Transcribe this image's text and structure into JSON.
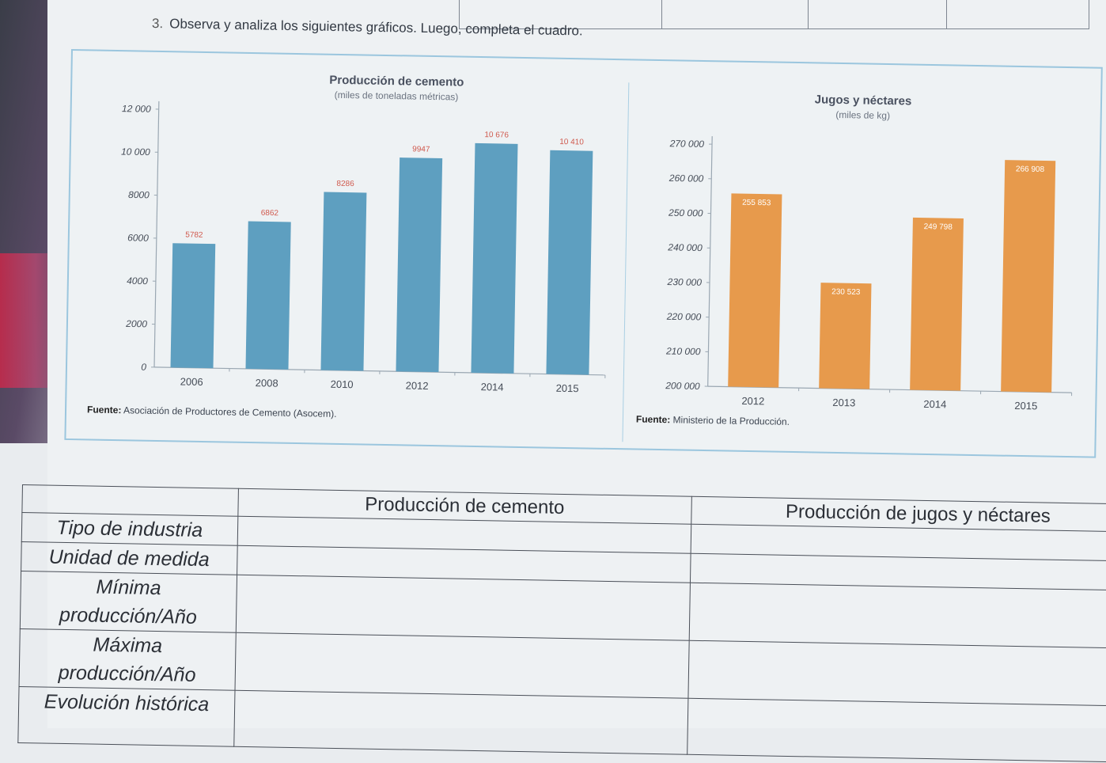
{
  "instruction": {
    "number": "3.",
    "text": "Observa y analiza los siguientes gráficos. Luego, completa el cuadro."
  },
  "chart_data": [
    {
      "type": "bar",
      "title": "Producción de cemento",
      "subtitle": "(miles de toneladas métricas)",
      "categories": [
        "2006",
        "2008",
        "2010",
        "2012",
        "2014",
        "2015"
      ],
      "values": [
        5782,
        6862,
        8286,
        9947,
        10676,
        10410
      ],
      "value_labels": [
        "5782",
        "6862",
        "8286",
        "9947",
        "10 676",
        "10 410"
      ],
      "ylim": [
        0,
        12000
      ],
      "yticks": [
        0,
        2000,
        4000,
        6000,
        8000,
        10000,
        12000
      ],
      "ytick_labels": [
        "0",
        "2000",
        "4000",
        "6000",
        "8000",
        "10 000",
        "12 000"
      ],
      "bar_color": "#5e9fc0",
      "label_color": "#d05a4e",
      "source_label": "Fuente:",
      "source": "Asociación de Productores de Cemento (Asocem)."
    },
    {
      "type": "bar",
      "title": "Jugos y néctares",
      "subtitle": "(miles de kg)",
      "categories": [
        "2012",
        "2013",
        "2014",
        "2015"
      ],
      "values": [
        255853,
        230523,
        249798,
        266908
      ],
      "value_labels": [
        "255 853",
        "230 523",
        "249 798",
        "266 908"
      ],
      "ylim": [
        200000,
        270000
      ],
      "yticks": [
        200000,
        210000,
        220000,
        230000,
        240000,
        250000,
        260000,
        270000
      ],
      "ytick_labels": [
        "200 000",
        "210 000",
        "220 000",
        "230 000",
        "240 000",
        "250 000",
        "260 000",
        "270 000"
      ],
      "bar_color": "#e79a4c",
      "label_color": "#ffffff",
      "source_label": "Fuente:",
      "source": "Ministerio de la Producción."
    }
  ],
  "table": {
    "columns": [
      "",
      "Producción de cemento",
      "Producción de jugos y néctares"
    ],
    "rows": [
      {
        "label": "Tipo de industria"
      },
      {
        "label_line1": "Unidad de medida"
      },
      {
        "label_line1": "Mínima",
        "label_line2": "producción/Año"
      },
      {
        "label_line1": "Máxima",
        "label_line2": "producción/Año"
      },
      {
        "label_line1": "Evolución histórica"
      }
    ]
  }
}
